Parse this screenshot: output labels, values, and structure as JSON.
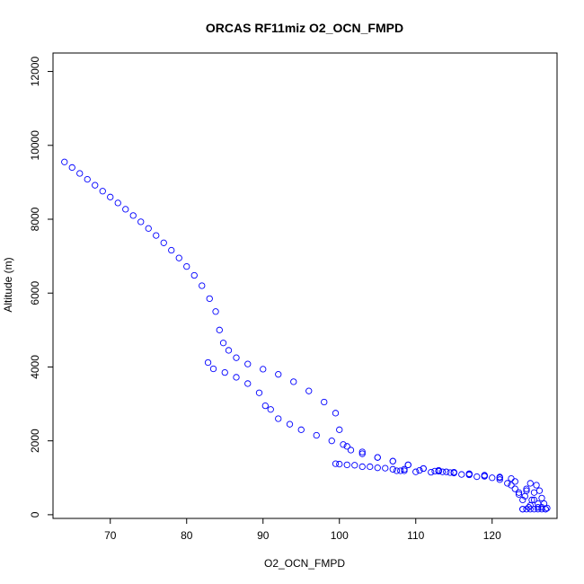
{
  "chart_data": {
    "type": "scatter",
    "title": "ORCAS RF11miz O2_OCN_FMPD",
    "xlabel": "O2_OCN_FMPD",
    "ylabel": "Altitude (m)",
    "xlim": [
      62.5,
      128.5
    ],
    "ylim": [
      -100,
      12500
    ],
    "xticks": [
      70,
      80,
      90,
      100,
      110,
      120
    ],
    "yticks": [
      0,
      2000,
      4000,
      6000,
      8000,
      10000,
      12000
    ],
    "grid": false,
    "legend": "none",
    "marker": "open-circle",
    "color": "#0000ff",
    "series": [
      {
        "points": [
          [
            64.0,
            9550
          ],
          [
            65.0,
            9400
          ],
          [
            66.0,
            9240
          ],
          [
            67.0,
            9080
          ],
          [
            68.0,
            8920
          ],
          [
            69.0,
            8760
          ],
          [
            70.0,
            8600
          ],
          [
            71.0,
            8440
          ],
          [
            72.0,
            8270
          ],
          [
            73.0,
            8100
          ],
          [
            74.0,
            7930
          ],
          [
            75.0,
            7750
          ],
          [
            76.0,
            7560
          ],
          [
            77.0,
            7360
          ],
          [
            78.0,
            7160
          ],
          [
            79.0,
            6950
          ],
          [
            80.0,
            6720
          ],
          [
            81.0,
            6480
          ],
          [
            82.0,
            6200
          ],
          [
            83.0,
            5850
          ],
          [
            83.8,
            5500
          ],
          [
            84.3,
            5000
          ],
          [
            84.8,
            4650
          ],
          [
            85.5,
            4450
          ],
          [
            86.5,
            4250
          ],
          [
            88.0,
            4080
          ],
          [
            90.0,
            3940
          ],
          [
            92.0,
            3800
          ],
          [
            94.0,
            3600
          ],
          [
            96.0,
            3350
          ],
          [
            98.0,
            3050
          ],
          [
            99.5,
            2750
          ],
          [
            100.0,
            2300
          ],
          [
            100.5,
            1900
          ],
          [
            101.5,
            1750
          ],
          [
            103.0,
            1650
          ],
          [
            105.0,
            1550
          ],
          [
            107.0,
            1450
          ],
          [
            109.0,
            1350
          ],
          [
            111.0,
            1250
          ],
          [
            113.0,
            1180
          ],
          [
            115.0,
            1130
          ],
          [
            117.0,
            1080
          ],
          [
            119.0,
            1040
          ],
          [
            121.0,
            1000
          ],
          [
            123.0,
            900
          ],
          [
            124.5,
            650
          ],
          [
            125.5,
            400
          ],
          [
            126.5,
            200
          ],
          [
            127.0,
            150
          ],
          [
            82.8,
            4120
          ],
          [
            83.5,
            3950
          ],
          [
            85.0,
            3850
          ],
          [
            86.5,
            3720
          ],
          [
            88.0,
            3550
          ],
          [
            89.5,
            3300
          ],
          [
            90.3,
            2950
          ],
          [
            91.0,
            2850
          ],
          [
            92.0,
            2600
          ],
          [
            93.5,
            2450
          ],
          [
            95.0,
            2300
          ],
          [
            97.0,
            2150
          ],
          [
            99.0,
            2000
          ],
          [
            101.0,
            1850
          ],
          [
            103.0,
            1700
          ],
          [
            105.0,
            1550
          ],
          [
            107.0,
            1450
          ],
          [
            109.0,
            1350
          ],
          [
            111.0,
            1250
          ],
          [
            113.0,
            1200
          ],
          [
            115.0,
            1150
          ],
          [
            117.0,
            1100
          ],
          [
            119.0,
            1050
          ],
          [
            121.0,
            950
          ],
          [
            122.5,
            800
          ],
          [
            123.5,
            600
          ],
          [
            124.0,
            400
          ],
          [
            124.0,
            150
          ],
          [
            99.5,
            1380
          ],
          [
            101.0,
            1350
          ],
          [
            103.0,
            1300
          ],
          [
            105.0,
            1270
          ],
          [
            107.0,
            1230
          ],
          [
            107.5,
            1190
          ],
          [
            108.0,
            1190
          ],
          [
            108.5,
            1190
          ],
          [
            110.0,
            1160
          ],
          [
            112.0,
            1150
          ],
          [
            113.0,
            1180
          ],
          [
            113.5,
            1160
          ],
          [
            114.0,
            1160
          ],
          [
            115.0,
            1140
          ],
          [
            117.0,
            1110
          ],
          [
            119.0,
            1070
          ],
          [
            121.0,
            1020
          ],
          [
            122.5,
            980
          ],
          [
            124.0,
            150
          ],
          [
            124.5,
            150
          ],
          [
            125.0,
            150
          ],
          [
            125.5,
            150
          ],
          [
            126.0,
            150
          ],
          [
            126.5,
            150
          ],
          [
            127.0,
            150
          ],
          [
            124.5,
            700
          ],
          [
            125.0,
            850
          ],
          [
            125.5,
            600
          ],
          [
            126.0,
            300
          ],
          [
            126.5,
            450
          ],
          [
            125.0,
            250
          ],
          [
            124.3,
            500
          ],
          [
            125.8,
            800
          ],
          [
            126.2,
            650
          ],
          [
            126.8,
            300
          ],
          [
            125.2,
            400
          ],
          [
            124.8,
            200
          ],
          [
            126.0,
            200
          ],
          [
            127.2,
            180
          ],
          [
            123.5,
            550
          ],
          [
            123.0,
            700
          ],
          [
            122.0,
            850
          ],
          [
            120.0,
            1000
          ],
          [
            118.0,
            1030
          ],
          [
            116.0,
            1090
          ],
          [
            114.5,
            1140
          ],
          [
            112.5,
            1180
          ],
          [
            110.5,
            1200
          ],
          [
            108.5,
            1230
          ],
          [
            106.0,
            1260
          ],
          [
            104.0,
            1300
          ],
          [
            102.0,
            1340
          ],
          [
            100.0,
            1370
          ]
        ]
      }
    ]
  }
}
